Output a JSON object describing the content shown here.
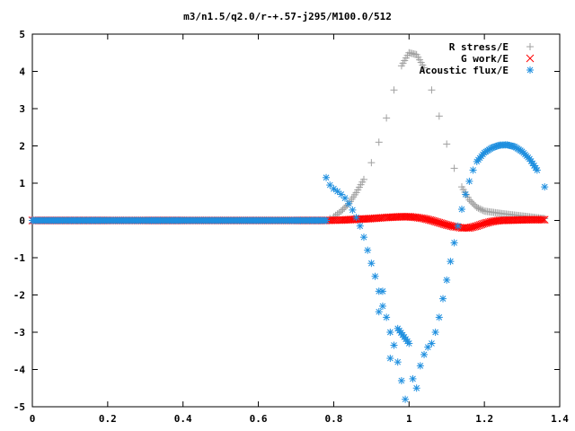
{
  "chart_data": {
    "type": "scatter",
    "title": "m3/n1.5/q2.0/r-+.57-j295/M100.0/512",
    "xlabel": "",
    "ylabel": "",
    "xlim": [
      0,
      1.4
    ],
    "ylim": [
      -5,
      5
    ],
    "x_ticks": [
      "0",
      "0.2",
      "0.4",
      "0.6",
      "0.8",
      "1",
      "1.2",
      "1.4"
    ],
    "y_ticks": [
      "5",
      "4",
      "3",
      "2",
      "1",
      "0",
      "-1",
      "-2",
      "-3",
      "-4",
      "-5"
    ],
    "grid": false,
    "legend_position": "top-right",
    "series": [
      {
        "name": "R stress/E",
        "marker": "plus",
        "color": "#a0a0a0",
        "points": [
          [
            0.0,
            0.0
          ],
          [
            0.1,
            0.0
          ],
          [
            0.2,
            0.0
          ],
          [
            0.3,
            0.0
          ],
          [
            0.4,
            0.0
          ],
          [
            0.5,
            0.0
          ],
          [
            0.6,
            0.0
          ],
          [
            0.7,
            0.0
          ],
          [
            0.78,
            0.0
          ],
          [
            0.79,
            0.05
          ],
          [
            0.8,
            0.1
          ],
          [
            0.82,
            0.25
          ],
          [
            0.84,
            0.45
          ],
          [
            0.86,
            0.75
          ],
          [
            0.88,
            1.1
          ],
          [
            0.9,
            1.55
          ],
          [
            0.92,
            2.1
          ],
          [
            0.94,
            2.75
          ],
          [
            0.96,
            3.5
          ],
          [
            0.98,
            4.15
          ],
          [
            1.0,
            4.5
          ],
          [
            1.02,
            4.45
          ],
          [
            1.04,
            4.1
          ],
          [
            1.06,
            3.5
          ],
          [
            1.08,
            2.8
          ],
          [
            1.1,
            2.05
          ],
          [
            1.12,
            1.4
          ],
          [
            1.14,
            0.9
          ],
          [
            1.16,
            0.55
          ],
          [
            1.18,
            0.35
          ],
          [
            1.2,
            0.25
          ],
          [
            1.25,
            0.18
          ],
          [
            1.3,
            0.12
          ],
          [
            1.36,
            0.05
          ]
        ]
      },
      {
        "name": "G work/E",
        "marker": "cross",
        "color": "#ff0000",
        "points": [
          [
            0.0,
            0.0
          ],
          [
            0.1,
            0.0
          ],
          [
            0.2,
            0.0
          ],
          [
            0.3,
            0.0
          ],
          [
            0.4,
            0.0
          ],
          [
            0.5,
            0.0
          ],
          [
            0.6,
            0.0
          ],
          [
            0.7,
            0.0
          ],
          [
            0.78,
            0.0
          ],
          [
            0.82,
            0.01
          ],
          [
            0.86,
            0.03
          ],
          [
            0.9,
            0.05
          ],
          [
            0.94,
            0.08
          ],
          [
            0.98,
            0.1
          ],
          [
            1.0,
            0.1
          ],
          [
            1.02,
            0.08
          ],
          [
            1.04,
            0.05
          ],
          [
            1.06,
            0.0
          ],
          [
            1.08,
            -0.06
          ],
          [
            1.1,
            -0.12
          ],
          [
            1.12,
            -0.17
          ],
          [
            1.14,
            -0.2
          ],
          [
            1.16,
            -0.2
          ],
          [
            1.18,
            -0.15
          ],
          [
            1.2,
            -0.08
          ],
          [
            1.22,
            -0.03
          ],
          [
            1.24,
            0.0
          ],
          [
            1.28,
            0.01
          ],
          [
            1.32,
            0.02
          ],
          [
            1.36,
            0.02
          ]
        ]
      },
      {
        "name": "Acoustic flux/E",
        "marker": "star",
        "color": "#1f8fdf",
        "points": [
          [
            0.0,
            0.0
          ],
          [
            0.1,
            0.0
          ],
          [
            0.2,
            0.0
          ],
          [
            0.3,
            0.0
          ],
          [
            0.4,
            0.0
          ],
          [
            0.5,
            0.0
          ],
          [
            0.6,
            0.0
          ],
          [
            0.7,
            0.0
          ],
          [
            0.78,
            0.0
          ],
          [
            0.78,
            1.15
          ],
          [
            0.79,
            0.95
          ],
          [
            0.8,
            0.85
          ],
          [
            0.81,
            0.78
          ],
          [
            0.82,
            0.7
          ],
          [
            0.83,
            0.6
          ],
          [
            0.84,
            0.45
          ],
          [
            0.85,
            0.28
          ],
          [
            0.86,
            0.08
          ],
          [
            0.87,
            -0.15
          ],
          [
            0.88,
            -0.45
          ],
          [
            0.89,
            -0.8
          ],
          [
            0.9,
            -1.15
          ],
          [
            0.91,
            -1.5
          ],
          [
            0.92,
            -1.9
          ],
          [
            0.93,
            -2.3
          ],
          [
            0.94,
            -2.6
          ],
          [
            0.95,
            -3.0
          ],
          [
            0.96,
            -3.35
          ],
          [
            0.97,
            -3.8
          ],
          [
            0.98,
            -4.3
          ],
          [
            0.99,
            -4.8
          ],
          [
            0.92,
            -2.45
          ],
          [
            0.93,
            -1.9
          ],
          [
            0.95,
            -3.7
          ],
          [
            0.97,
            -2.9
          ],
          [
            1.0,
            -3.3
          ],
          [
            1.01,
            -4.25
          ],
          [
            1.02,
            -4.5
          ],
          [
            1.03,
            -3.9
          ],
          [
            1.04,
            -3.6
          ],
          [
            1.05,
            -3.4
          ],
          [
            1.06,
            -3.3
          ],
          [
            1.07,
            -3.0
          ],
          [
            1.08,
            -2.6
          ],
          [
            1.09,
            -2.1
          ],
          [
            1.1,
            -1.6
          ],
          [
            1.11,
            -1.1
          ],
          [
            1.12,
            -0.6
          ],
          [
            1.13,
            -0.15
          ],
          [
            1.14,
            0.3
          ],
          [
            1.15,
            0.7
          ],
          [
            1.16,
            1.05
          ],
          [
            1.17,
            1.35
          ],
          [
            1.18,
            1.58
          ],
          [
            1.2,
            1.82
          ],
          [
            1.22,
            1.95
          ],
          [
            1.24,
            2.02
          ],
          [
            1.26,
            2.03
          ],
          [
            1.28,
            1.98
          ],
          [
            1.3,
            1.85
          ],
          [
            1.32,
            1.65
          ],
          [
            1.34,
            1.35
          ],
          [
            1.36,
            0.9
          ]
        ]
      }
    ]
  }
}
